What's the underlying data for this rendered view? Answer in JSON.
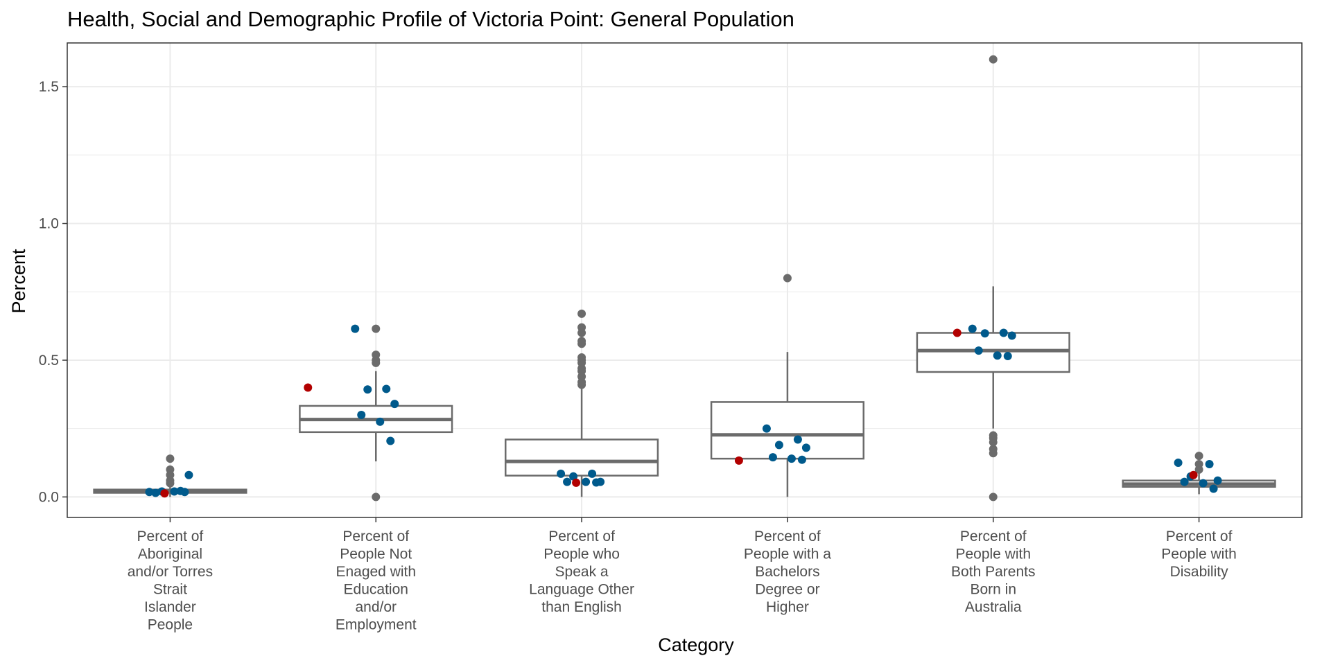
{
  "chart_data": {
    "type": "box",
    "title": "Health, Social and Demographic Profile of Victoria Point: General Population",
    "xlabel": "Category",
    "ylabel": "Percent",
    "ylim": [
      -0.075,
      1.66
    ],
    "yticks": [
      0.0,
      0.5,
      1.0,
      1.5
    ],
    "ytick_labels": [
      "0.0",
      "0.5",
      "1.0",
      "1.5"
    ],
    "grid": true,
    "legend": "none",
    "colors": {
      "box": "#6b6b6b",
      "outlier": "#6b6b6b",
      "comparison": "#005a8c",
      "highlight": "#b20000",
      "grid": "#ebebeb",
      "panel_border": "#333333"
    },
    "categories": [
      {
        "label_lines": [
          "Percent of",
          "Aboriginal",
          "and/or Torres",
          "Strait",
          "Islander",
          "People"
        ],
        "box": {
          "q1": 0.015,
          "median": 0.02,
          "q3": 0.027,
          "whisker_low": 0.0,
          "whisker_high": 0.04
        },
        "outliers": [
          0.05,
          0.06,
          0.08,
          0.1,
          0.14
        ],
        "comparison_points": [
          0.018,
          0.022,
          0.02,
          0.08,
          0.015,
          0.02,
          0.018
        ],
        "highlight_point": 0.013
      },
      {
        "label_lines": [
          "Percent of",
          "People Not",
          "Enaged with",
          "Education",
          "and/or",
          "Employment"
        ],
        "box": {
          "q1": 0.237,
          "median": 0.283,
          "q3": 0.333,
          "whisker_low": 0.13,
          "whisker_high": 0.46
        },
        "outliers": [
          0.0,
          0.49,
          0.5,
          0.52,
          0.615
        ],
        "comparison_points": [
          0.615,
          0.395,
          0.393,
          0.34,
          0.3,
          0.275,
          0.205
        ],
        "highlight_point": 0.4
      },
      {
        "label_lines": [
          "Percent of",
          "People who",
          "Speak a",
          "Language Other",
          "than English"
        ],
        "box": {
          "q1": 0.078,
          "median": 0.13,
          "q3": 0.21,
          "whisker_low": 0.0,
          "whisker_high": 0.4
        },
        "outliers": [
          0.41,
          0.42,
          0.44,
          0.46,
          0.47,
          0.49,
          0.5,
          0.51,
          0.56,
          0.57,
          0.6,
          0.62,
          0.67
        ],
        "comparison_points": [
          0.085,
          0.085,
          0.075,
          0.055,
          0.055,
          0.055,
          0.053
        ],
        "highlight_point": 0.052
      },
      {
        "label_lines": [
          "Percent of",
          "People with a",
          "Bachelors",
          "Degree or",
          "Higher"
        ],
        "box": {
          "q1": 0.14,
          "median": 0.227,
          "q3": 0.347,
          "whisker_low": 0.0,
          "whisker_high": 0.53
        },
        "outliers": [
          0.8
        ],
        "comparison_points": [
          0.25,
          0.21,
          0.19,
          0.18,
          0.145,
          0.14,
          0.136
        ],
        "highlight_point": 0.133
      },
      {
        "label_lines": [
          "Percent of",
          "People with",
          "Both Parents",
          "Born in",
          "Australia"
        ],
        "box": {
          "q1": 0.457,
          "median": 0.535,
          "q3": 0.6,
          "whisker_low": 0.25,
          "whisker_high": 0.77
        },
        "outliers": [
          0.0,
          0.16,
          0.175,
          0.2,
          0.215,
          0.225,
          1.6
        ],
        "comparison_points": [
          0.615,
          0.6,
          0.598,
          0.59,
          0.535,
          0.517,
          0.515
        ],
        "highlight_point": 0.6
      },
      {
        "label_lines": [
          "Percent of",
          "People with",
          "Disability"
        ],
        "box": {
          "q1": 0.037,
          "median": 0.047,
          "q3": 0.06,
          "whisker_low": 0.01,
          "whisker_high": 0.09
        },
        "outliers": [
          0.1,
          0.12,
          0.15
        ],
        "comparison_points": [
          0.125,
          0.12,
          0.075,
          0.06,
          0.055,
          0.05,
          0.03
        ],
        "highlight_point": 0.08
      }
    ]
  }
}
